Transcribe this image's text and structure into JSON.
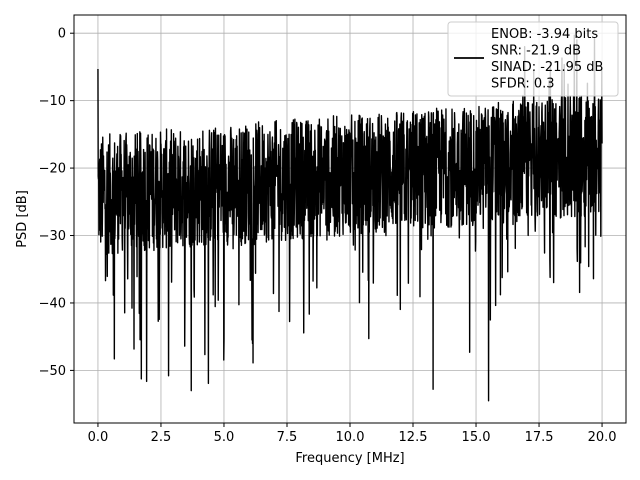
{
  "chart_data": {
    "type": "line",
    "title": "",
    "xlabel": "Frequency [MHz]",
    "ylabel": "PSD [dB]",
    "xlim": [
      -0.95,
      20.95
    ],
    "ylim": [
      -57.8,
      2.7
    ],
    "xticks": [
      0.0,
      2.5,
      5.0,
      7.5,
      10.0,
      12.5,
      15.0,
      17.5,
      20.0
    ],
    "xtick_labels": [
      "0.0",
      "2.5",
      "5.0",
      "7.5",
      "10.0",
      "12.5",
      "15.0",
      "17.5",
      "20.0"
    ],
    "yticks": [
      0,
      -10,
      -20,
      -30,
      -40,
      -50
    ],
    "ytick_labels": [
      "0",
      "−10",
      "−20",
      "−30",
      "−40",
      "−50"
    ],
    "grid": true,
    "legend_position": "top-right",
    "legend_lines": [
      "ENOB: -3.94 bits",
      "SNR: -21.9 dB",
      "SINAD: -21.95 dB",
      "SFDR: 0.3"
    ],
    "series": [
      {
        "color": "#000000",
        "x_range": [
          0.0,
          20.0
        ],
        "start_value": -5.3,
        "noise_floor_start": -24,
        "noise_floor_end": -18,
        "spread": 10,
        "noted_values": [
          {
            "x": 0.0,
            "y": -5.3
          },
          {
            "x": 0.65,
            "y": -48.3
          },
          {
            "x": 2.8,
            "y": -50.8
          },
          {
            "x": 3.7,
            "y": -53.0
          },
          {
            "x": 13.3,
            "y": -52.8
          },
          {
            "x": 15.5,
            "y": -54.5
          },
          {
            "x": 18.9,
            "y": -0.3
          },
          {
            "x": 19.0,
            "y": -1.0
          },
          {
            "x": 19.7,
            "y": -0.8
          }
        ]
      }
    ]
  },
  "colors": {
    "line": "#000000",
    "grid": "#b0b0b0",
    "background": "#ffffff"
  }
}
